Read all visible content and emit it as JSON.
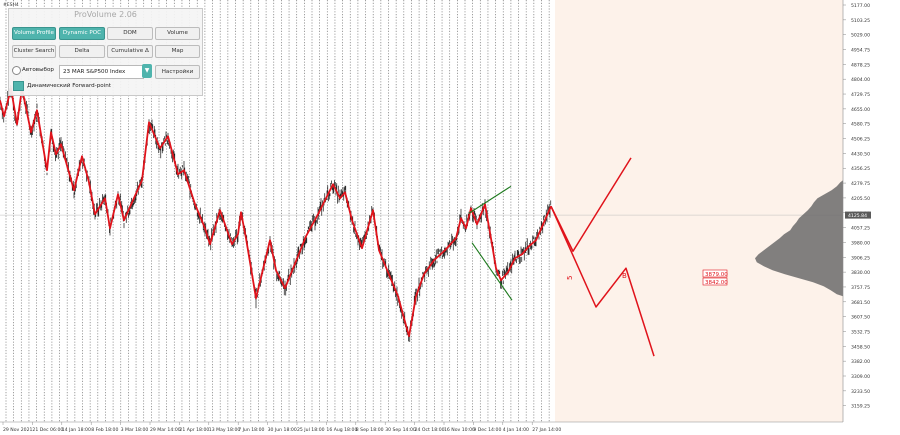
{
  "symbol": "#ESH4",
  "panel": {
    "title": "ProVolume 2.06",
    "buttons": [
      "Volume Profile",
      "Dynamic POC",
      "DOM",
      "Volume",
      "Cluster Search",
      "Delta",
      "Cumulative Δ",
      "Map"
    ],
    "active": [
      true,
      true,
      false,
      false,
      false,
      false,
      false,
      false
    ],
    "auto_label": "Автовыбор",
    "instrument": "23 MAR S&P500 Index",
    "settings_label": "Настройки",
    "forward_label": "Динамический Forward-point"
  },
  "price_axis": {
    "ticks": [
      "5177.00",
      "5103.25",
      "5029.00",
      "4954.75",
      "4878.25",
      "4804.00",
      "4729.75",
      "4655.00",
      "4580.75",
      "4506.25",
      "4430.50",
      "4356.25",
      "4279.75",
      "4205.50",
      "4131.25",
      "4057.25",
      "3980.00",
      "3906.25",
      "3830.00",
      "3757.75",
      "3681.50",
      "3607.50",
      "3532.75",
      "3458.50",
      "3382.00",
      "3309.00",
      "3233.50",
      "3159.25"
    ],
    "current_price": "4125.84",
    "current_price_color": "#5a5a5a"
  },
  "time_axis": {
    "labels": [
      "29 Nov 2021",
      "21 Dec 06:00",
      "14 Jan 18:00",
      "8 Feb 18:00",
      "3 Mar 18:00",
      "29 Mar 14:00",
      "21 Apr 18:00",
      "13 May 18:00",
      "7 Jun 18:00",
      "30 Jun 18:00",
      "25 Jul 18:00",
      "16 Aug 18:00",
      "8 Sep 18:00",
      "30 Sep 14:00",
      "24 Oct 18:00",
      "16 Nov 10:00",
      "9 Dec 14:00",
      "4 Jan 14:00",
      "27 Jan 14:00"
    ]
  },
  "annotations": {
    "label_5": "5",
    "label_B": "B",
    "level_1": "3879.00",
    "level_2": "3842.00"
  },
  "colors": {
    "zigzag": "#e0131b",
    "triangle": "#1f7a1f",
    "profile": "#6b6b6b",
    "background": "#fdf2ea",
    "grid": "#555555",
    "accent": "#4fb4ad"
  },
  "chart_data": {
    "type": "line",
    "zigzag": [
      [
        0,
        4700
      ],
      [
        4,
        4620
      ],
      [
        11,
        4760
      ],
      [
        17,
        4580
      ],
      [
        22,
        4760
      ],
      [
        31,
        4540
      ],
      [
        37,
        4650
      ],
      [
        47,
        4350
      ],
      [
        51,
        4540
      ],
      [
        56,
        4430
      ],
      [
        61,
        4480
      ],
      [
        74,
        4250
      ],
      [
        82,
        4420
      ],
      [
        89,
        4290
      ],
      [
        95,
        4130
      ],
      [
        105,
        4210
      ],
      [
        110,
        4060
      ],
      [
        118,
        4230
      ],
      [
        124,
        4100
      ],
      [
        142,
        4300
      ],
      [
        149,
        4590
      ],
      [
        160,
        4460
      ],
      [
        168,
        4520
      ],
      [
        178,
        4330
      ],
      [
        184,
        4350
      ],
      [
        195,
        4180
      ],
      [
        205,
        4060
      ],
      [
        210,
        3980
      ],
      [
        220,
        4150
      ],
      [
        232,
        3980
      ],
      [
        238,
        4030
      ],
      [
        241,
        4140
      ],
      [
        246,
        4010
      ],
      [
        256,
        3710
      ],
      [
        270,
        4000
      ],
      [
        276,
        3850
      ],
      [
        285,
        3760
      ],
      [
        298,
        3920
      ],
      [
        306,
        4020
      ],
      [
        318,
        4130
      ],
      [
        333,
        4280
      ],
      [
        340,
        4210
      ],
      [
        345,
        4240
      ],
      [
        352,
        4100
      ],
      [
        362,
        3960
      ],
      [
        373,
        4150
      ],
      [
        379,
        3950
      ],
      [
        388,
        3840
      ],
      [
        398,
        3720
      ],
      [
        409,
        3520
      ],
      [
        416,
        3720
      ],
      [
        424,
        3830
      ],
      [
        434,
        3900
      ],
      [
        445,
        3950
      ],
      [
        456,
        4010
      ],
      [
        461,
        4110
      ],
      [
        466,
        4060
      ],
      [
        471,
        4160
      ],
      [
        477,
        4080
      ],
      [
        485,
        4180
      ],
      [
        492,
        3980
      ],
      [
        496,
        3860
      ],
      [
        501,
        3800
      ],
      [
        508,
        3840
      ],
      [
        515,
        3910
      ],
      [
        522,
        3930
      ],
      [
        529,
        3970
      ],
      [
        536,
        4000
      ],
      [
        544,
        4090
      ],
      [
        551,
        4170
      ]
    ],
    "projection_up": [
      [
        551,
        4170
      ],
      [
        573,
        3945
      ],
      [
        631,
        4412
      ]
    ],
    "projection_down": [
      [
        551,
        4170
      ],
      [
        596,
        3666
      ],
      [
        626,
        3860
      ],
      [
        654,
        3420
      ]
    ],
    "triangle_upper": [
      [
        469,
        4135
      ],
      [
        511,
        4270
      ]
    ],
    "triangle_lower": [
      [
        472,
        3988
      ],
      [
        512,
        3700
      ]
    ],
    "volume_profile": [
      [
        4290,
        0.03
      ],
      [
        4270,
        0.07
      ],
      [
        4250,
        0.13
      ],
      [
        4230,
        0.21
      ],
      [
        4210,
        0.29
      ],
      [
        4190,
        0.33
      ],
      [
        4170,
        0.36
      ],
      [
        4150,
        0.4
      ],
      [
        4130,
        0.45
      ],
      [
        4110,
        0.5
      ],
      [
        4090,
        0.53
      ],
      [
        4070,
        0.57
      ],
      [
        4050,
        0.6
      ],
      [
        4030,
        0.67
      ],
      [
        4010,
        0.72
      ],
      [
        3990,
        0.78
      ],
      [
        3970,
        0.84
      ],
      [
        3950,
        0.9
      ],
      [
        3930,
        0.96
      ],
      [
        3910,
        1.0
      ],
      [
        3890,
        0.98
      ],
      [
        3870,
        0.9
      ],
      [
        3850,
        0.8
      ],
      [
        3830,
        0.66
      ],
      [
        3810,
        0.5
      ],
      [
        3790,
        0.34
      ],
      [
        3770,
        0.22
      ],
      [
        3750,
        0.14
      ],
      [
        3730,
        0.07
      ]
    ]
  }
}
